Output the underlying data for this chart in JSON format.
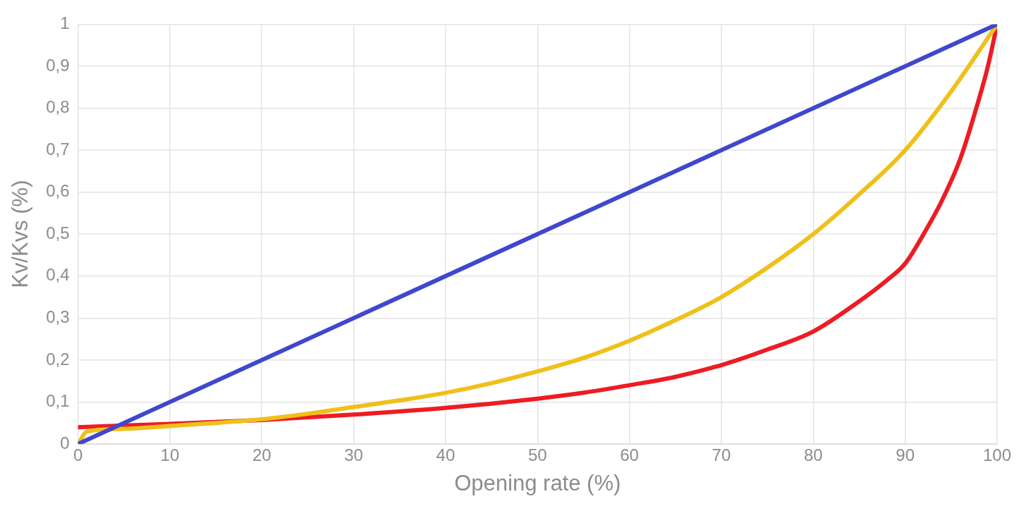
{
  "chart_data": {
    "type": "line",
    "xlabel": "Opening rate (%)",
    "ylabel": "Kv/Kvs (%)",
    "xlim": [
      0,
      100
    ],
    "xticks": [
      0,
      10,
      20,
      30,
      40,
      50,
      60,
      70,
      80,
      90,
      100
    ],
    "ylim": [
      0,
      1
    ],
    "yticks": [
      0,
      {
        "value": 0.1,
        "label": "0,1"
      },
      {
        "value": 0.2,
        "label": "0,2"
      },
      {
        "value": 0.3,
        "label": "0,3"
      },
      {
        "value": 0.4,
        "label": "0,4"
      },
      {
        "value": 0.5,
        "label": "0,5"
      },
      {
        "value": 0.6,
        "label": "0,6"
      },
      {
        "value": 0.7,
        "label": "0,7"
      },
      {
        "value": 0.8,
        "label": "0,8"
      },
      {
        "value": 0.9,
        "label": "0,9"
      },
      1
    ],
    "grid": true,
    "legend": false,
    "series": [
      {
        "color": "#3f48cc",
        "x": [
          0,
          100
        ],
        "values": [
          0,
          1
        ]
      },
      {
        "color": "#f0c01a",
        "x": [
          0,
          1,
          5,
          10,
          15,
          20,
          25,
          30,
          35,
          40,
          45,
          50,
          55,
          60,
          65,
          70,
          75,
          80,
          85,
          90,
          95,
          100
        ],
        "values": [
          0,
          0.03,
          0.036,
          0.043,
          0.05,
          0.059,
          0.072,
          0.088,
          0.104,
          0.122,
          0.145,
          0.173,
          0.205,
          0.246,
          0.295,
          0.35,
          0.42,
          0.5,
          0.595,
          0.7,
          0.84,
          1
        ]
      },
      {
        "color": "#ed1c24",
        "x": [
          0,
          10,
          20,
          30,
          40,
          50,
          55,
          60,
          65,
          70,
          75,
          80,
          85,
          88,
          90,
          92,
          94,
          96,
          98,
          99,
          100
        ],
        "values": [
          0.04,
          0.048,
          0.057,
          0.07,
          0.086,
          0.108,
          0.122,
          0.14,
          0.16,
          0.188,
          0.225,
          0.268,
          0.34,
          0.39,
          0.43,
          0.5,
          0.58,
          0.68,
          0.82,
          0.9,
          1
        ]
      }
    ]
  }
}
